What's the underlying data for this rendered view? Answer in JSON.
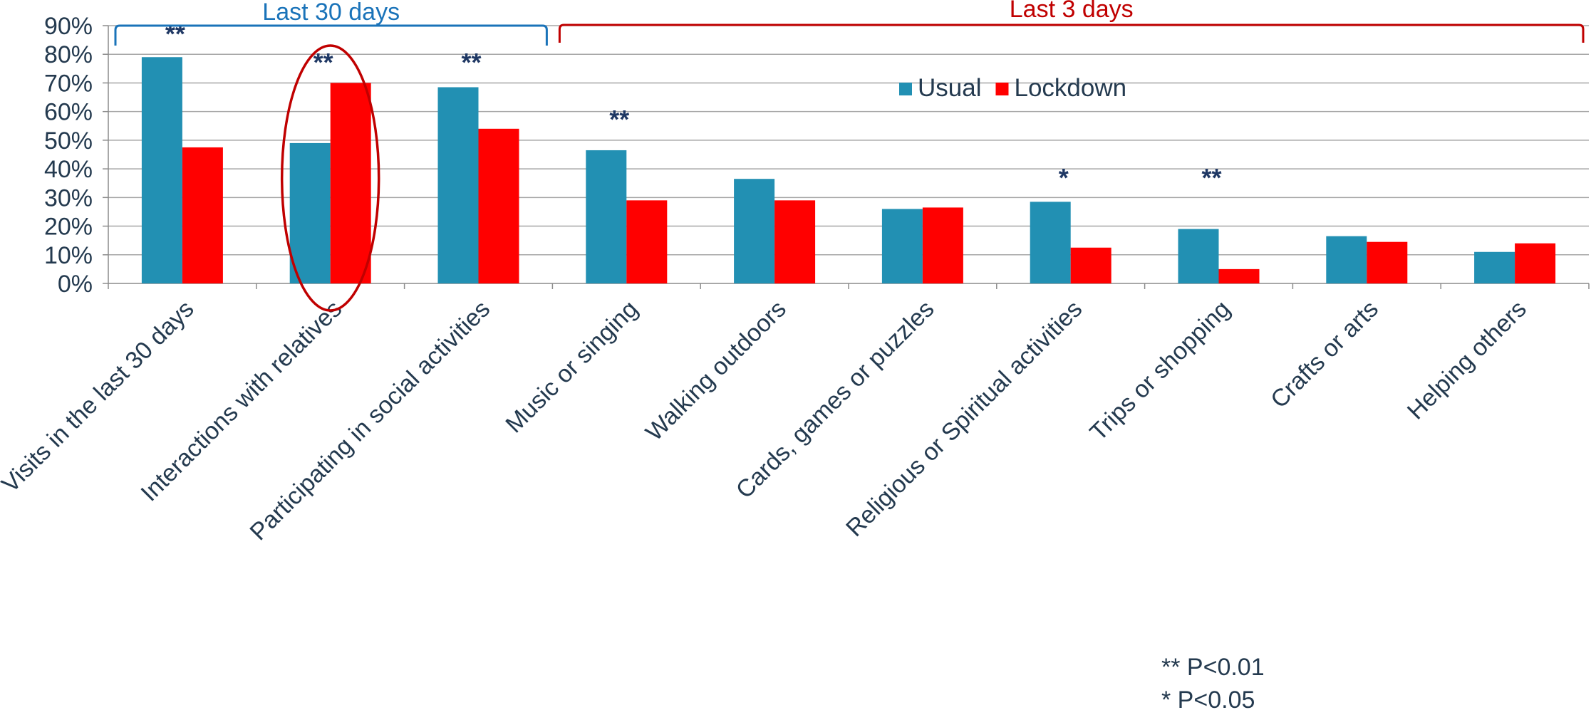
{
  "chart_data": {
    "type": "bar",
    "title": "",
    "xlabel": "",
    "ylabel": "",
    "ylim": [
      0,
      90
    ],
    "yticks": [
      "0%",
      "10%",
      "20%",
      "30%",
      "40%",
      "50%",
      "60%",
      "70%",
      "80%",
      "90%"
    ],
    "grid": true,
    "legend_position": "top-center",
    "categories": [
      "Visits in the last 30 days",
      "Interactions with relatives",
      "Participating in social activities",
      "Music or singing",
      "Walking outdoors",
      "Cards, games or puzzles",
      "Religious or Spiritual activities",
      "Trips or shopping",
      "Crafts or arts",
      "Helping others"
    ],
    "series": [
      {
        "name": "Usual",
        "color": "#2290b3",
        "values": [
          79,
          49,
          68.5,
          46.5,
          36.5,
          26,
          28.5,
          19,
          16.5,
          11
        ]
      },
      {
        "name": "Lockdown",
        "color": "#ff0000",
        "values": [
          47.5,
          70,
          54,
          29,
          29,
          26.5,
          12.5,
          5,
          14.5,
          14
        ]
      }
    ],
    "significance": [
      "**",
      "**",
      "**",
      "**",
      "",
      "",
      "*",
      "**",
      "",
      ""
    ],
    "brackets": [
      {
        "label": "Last 30 days",
        "color": "#1a73b9",
        "from_category": 0,
        "to_category": 2
      },
      {
        "label": "Last 3 days",
        "color": "#c00000",
        "from_category": 3,
        "to_category": 9
      }
    ],
    "highlight_category": 1,
    "highlight_color": "#c00000",
    "footnotes": [
      "** P<0.01",
      "*  P<0.05"
    ]
  }
}
